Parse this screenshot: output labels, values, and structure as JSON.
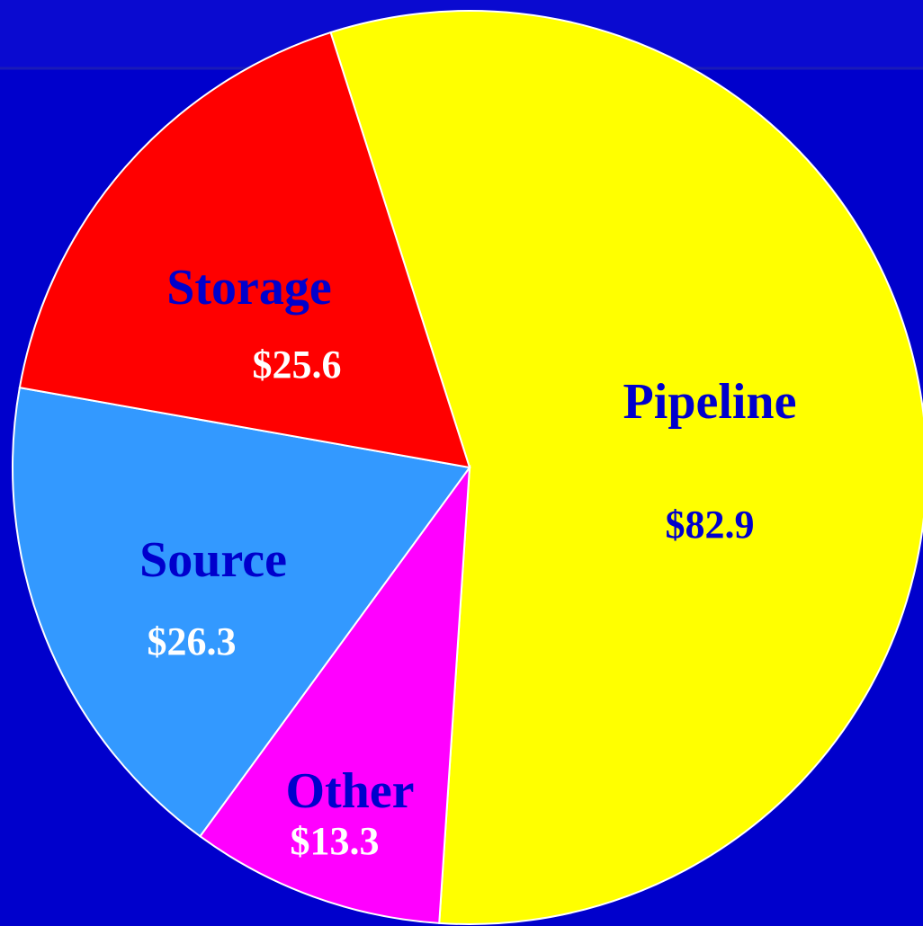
{
  "chart_data": {
    "type": "pie",
    "categories": [
      "Pipeline",
      "Other",
      "Source",
      "Storage"
    ],
    "values": [
      82.9,
      13.3,
      26.3,
      25.6
    ],
    "value_labels": [
      "$82.9",
      "$13.3",
      "$26.3",
      "$25.6"
    ],
    "colors": [
      "#ffff00",
      "#ff00ff",
      "#3399ff",
      "#ff0000"
    ]
  }
}
